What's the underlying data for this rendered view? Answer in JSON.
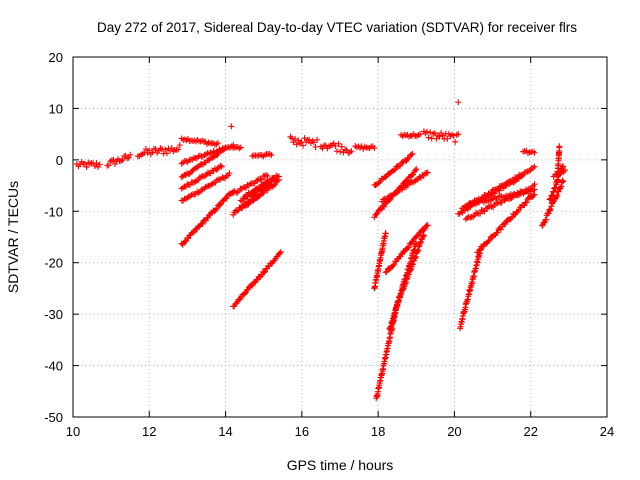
{
  "chart_data": {
    "type": "scatter",
    "title": "Day 272 of 2017, Sidereal Day-to-day VTEC variation (SDTVAR) for receiver flrs",
    "xlabel": "GPS time / hours",
    "ylabel": "SDTVAR / TECUs",
    "xlim": [
      10,
      24
    ],
    "ylim": [
      -50,
      20
    ],
    "xticks": [
      10,
      12,
      14,
      16,
      18,
      20,
      22,
      24
    ],
    "yticks": [
      20,
      10,
      0,
      -10,
      -20,
      -30,
      -40,
      -50
    ],
    "grid": true,
    "marker": "+",
    "color": "#ff0000",
    "segments": [
      {
        "x0": 10.1,
        "x1": 10.7,
        "y0": -1.0,
        "y1": -1.0,
        "band": 1.2
      },
      {
        "x0": 10.9,
        "x1": 11.5,
        "y0": -0.8,
        "y1": 0.6,
        "band": 1.2
      },
      {
        "x0": 11.7,
        "x1": 12.8,
        "y0": 1.2,
        "y1": 2.2,
        "band": 1.5
      },
      {
        "x0": 12.85,
        "x1": 13.8,
        "y0": 4.2,
        "y1": 3.0,
        "band": 0.6
      },
      {
        "x0": 12.85,
        "x1": 14.2,
        "y0": -0.6,
        "y1": 2.8,
        "band": 0.5
      },
      {
        "x0": 12.85,
        "x1": 14.0,
        "y0": -3.5,
        "y1": 2.2,
        "band": 0.5
      },
      {
        "x0": 12.85,
        "x1": 13.9,
        "y0": -5.5,
        "y1": -1.2,
        "band": 0.5
      },
      {
        "x0": 12.85,
        "x1": 14.1,
        "y0": -8.0,
        "y1": -2.8,
        "band": 0.5
      },
      {
        "x0": 12.85,
        "x1": 14.2,
        "y0": -16.5,
        "y1": -6.0,
        "band": 0.5
      },
      {
        "x0": 14.2,
        "x1": 14.4,
        "y0": 2.5,
        "y1": 2.5,
        "band": 0.6
      },
      {
        "x0": 14.2,
        "x1": 15.1,
        "y0": -6.5,
        "y1": -3.0,
        "band": 0.6
      },
      {
        "x0": 14.2,
        "x1": 15.2,
        "y0": -10.5,
        "y1": -4.8,
        "band": 0.6
      },
      {
        "x0": 14.4,
        "x1": 15.3,
        "y0": -8.0,
        "y1": -3.5,
        "band": 0.6
      },
      {
        "x0": 14.4,
        "x1": 15.4,
        "y0": -9.5,
        "y1": -4.0,
        "band": 0.6
      },
      {
        "x0": 14.5,
        "x1": 15.4,
        "y0": -7.0,
        "y1": -3.0,
        "band": 0.6
      },
      {
        "x0": 14.7,
        "x1": 15.2,
        "y0": 0.8,
        "y1": 1.0,
        "band": 0.5
      },
      {
        "x0": 14.2,
        "x1": 15.45,
        "y0": -28.5,
        "y1": -18.0,
        "band": 0.5
      },
      {
        "x0": 15.7,
        "x1": 16.4,
        "y0": 3.8,
        "y1": 3.2,
        "band": 1.6
      },
      {
        "x0": 16.5,
        "x1": 17.3,
        "y0": 3.2,
        "y1": 2.0,
        "band": 1.8
      },
      {
        "x0": 17.4,
        "x1": 17.9,
        "y0": 2.4,
        "y1": 2.4,
        "band": 0.6
      },
      {
        "x0": 18.6,
        "x1": 19.1,
        "y0": 4.8,
        "y1": 4.8,
        "band": 0.6
      },
      {
        "x0": 19.2,
        "x1": 20.1,
        "y0": 5.0,
        "y1": 4.2,
        "band": 1.6
      },
      {
        "x0": 17.9,
        "x1": 18.9,
        "y0": -5.0,
        "y1": 1.0,
        "band": 0.5
      },
      {
        "x0": 17.9,
        "x1": 19.0,
        "y0": -11.0,
        "y1": -2.0,
        "band": 0.5
      },
      {
        "x0": 18.1,
        "x1": 19.3,
        "y0": -8.0,
        "y1": -2.5,
        "band": 0.5
      },
      {
        "x0": 18.2,
        "x1": 19.3,
        "y0": -22.0,
        "y1": -12.5,
        "band": 0.5
      },
      {
        "x0": 17.9,
        "x1": 18.2,
        "y0": -25.0,
        "y1": -14.0,
        "band": 0.6
      },
      {
        "x0": 18.3,
        "x1": 19.0,
        "y0": -33.0,
        "y1": -16.0,
        "band": 0.6
      },
      {
        "x0": 17.95,
        "x1": 18.5,
        "y0": -46.5,
        "y1": -28.0,
        "band": 0.5
      },
      {
        "x0": 18.5,
        "x1": 19.2,
        "y0": -28.0,
        "y1": -14.5,
        "band": 0.5
      },
      {
        "x0": 20.1,
        "x1": 21.8,
        "y0": -10.5,
        "y1": -3.0,
        "band": 0.6
      },
      {
        "x0": 20.2,
        "x1": 22.1,
        "y0": -9.5,
        "y1": -1.5,
        "band": 0.6
      },
      {
        "x0": 20.3,
        "x1": 22.1,
        "y0": -11.5,
        "y1": -5.0,
        "band": 0.6
      },
      {
        "x0": 20.4,
        "x1": 22.1,
        "y0": -8.5,
        "y1": -6.0,
        "band": 0.6
      },
      {
        "x0": 20.6,
        "x1": 22.1,
        "y0": -18.0,
        "y1": -6.5,
        "band": 0.6
      },
      {
        "x0": 20.15,
        "x1": 20.7,
        "y0": -32.5,
        "y1": -17.0,
        "band": 0.6
      },
      {
        "x0": 21.8,
        "x1": 22.1,
        "y0": 1.5,
        "y1": 1.5,
        "band": 0.6
      },
      {
        "x0": 22.3,
        "x1": 22.85,
        "y0": -13.0,
        "y1": -4.0,
        "band": 0.7
      },
      {
        "x0": 22.5,
        "x1": 22.85,
        "y0": -8.0,
        "y1": -1.0,
        "band": 0.7
      },
      {
        "x0": 22.6,
        "x1": 22.9,
        "y0": -3.0,
        "y1": -2.0,
        "band": 0.7
      },
      {
        "x0": 22.7,
        "x1": 22.75,
        "y0": -4.0,
        "y1": 2.5,
        "band": 0.4
      }
    ],
    "isolated_points": [
      {
        "x": 14.15,
        "y": 6.5
      },
      {
        "x": 20.1,
        "y": 11.2
      }
    ]
  }
}
